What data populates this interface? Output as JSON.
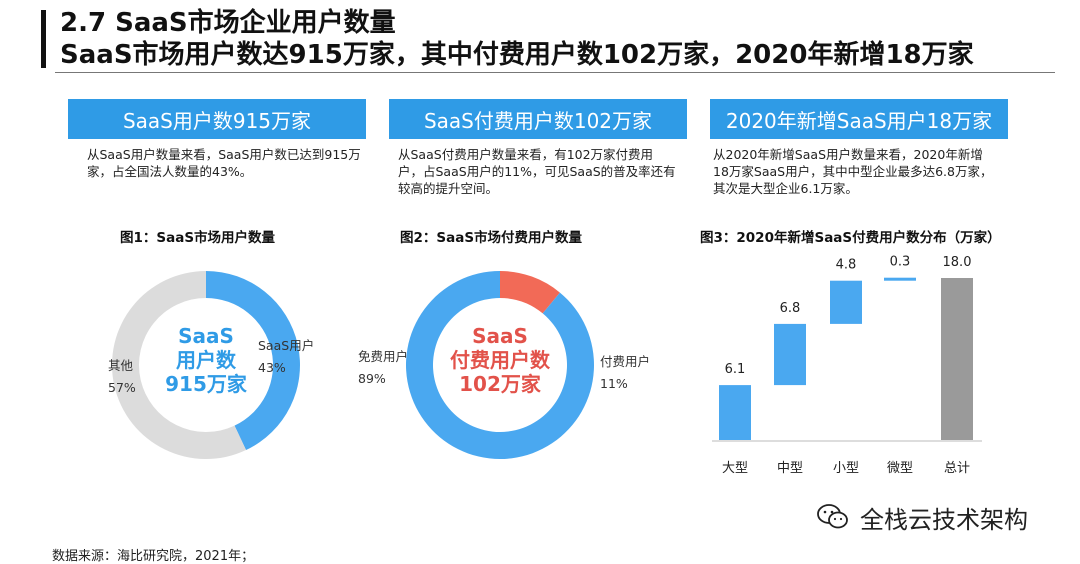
{
  "header": {
    "section_title": "2.7 SaaS市场企业用户数量",
    "headline": "SaaS市场用户数达915万家，其中付费用户数102万家，2020年新增18万家"
  },
  "tiles": [
    {
      "label": "SaaS用户数915万家",
      "desc": "从SaaS用户数量来看，SaaS用户数已达到915万家，占全国法人数量的43%。"
    },
    {
      "label": "SaaS付费用户数102万家",
      "desc": "从SaaS付费用户数量来看，有102万家付费用户，占SaaS用户的11%，可见SaaS的普及率还有较高的提升空间。"
    },
    {
      "label": "2020年新增SaaS用户18万家",
      "desc": "从2020年新增SaaS用户数量来看，2020年新增18万家SaaS用户，其中中型企业最多达6.8万家，其次是大型企业6.1万家。"
    }
  ],
  "colors": {
    "blue": "#4aa8f0",
    "gray": "#dcdcdc",
    "red": "#f26a57",
    "total": "#9a9a9a",
    "tile": "#2f9be6"
  },
  "chart_data": [
    {
      "type": "pie",
      "title": "图1：SaaS市场用户数量",
      "center_lines": [
        "SaaS",
        "用户数",
        "915万家"
      ],
      "slices": [
        {
          "label": "SaaS用户",
          "value": 43,
          "value_label": "43%"
        },
        {
          "label": "其他",
          "value": 57,
          "value_label": "57%"
        }
      ]
    },
    {
      "type": "pie",
      "title": "图2：SaaS市场付费用户数量",
      "center_lines": [
        "SaaS",
        "付费用户数",
        "102万家"
      ],
      "slices": [
        {
          "label": "付费用户",
          "value": 11,
          "value_label": "11%"
        },
        {
          "label": "免费用户",
          "value": 89,
          "value_label": "89%"
        }
      ]
    },
    {
      "type": "bar",
      "subtype": "waterfall",
      "title": "图3：2020年新增SaaS付费用户数分布（万家）",
      "categories": [
        "大型",
        "中型",
        "小型",
        "微型",
        "总计"
      ],
      "values": [
        6.1,
        6.8,
        4.8,
        0.3,
        18.0
      ],
      "value_labels": [
        "6.1",
        "6.8",
        "4.8",
        "0.3",
        "18.0"
      ]
    }
  ],
  "footer": {
    "source": "数据来源：海比研究院，2021年；",
    "brand": "全栈云技术架构"
  }
}
